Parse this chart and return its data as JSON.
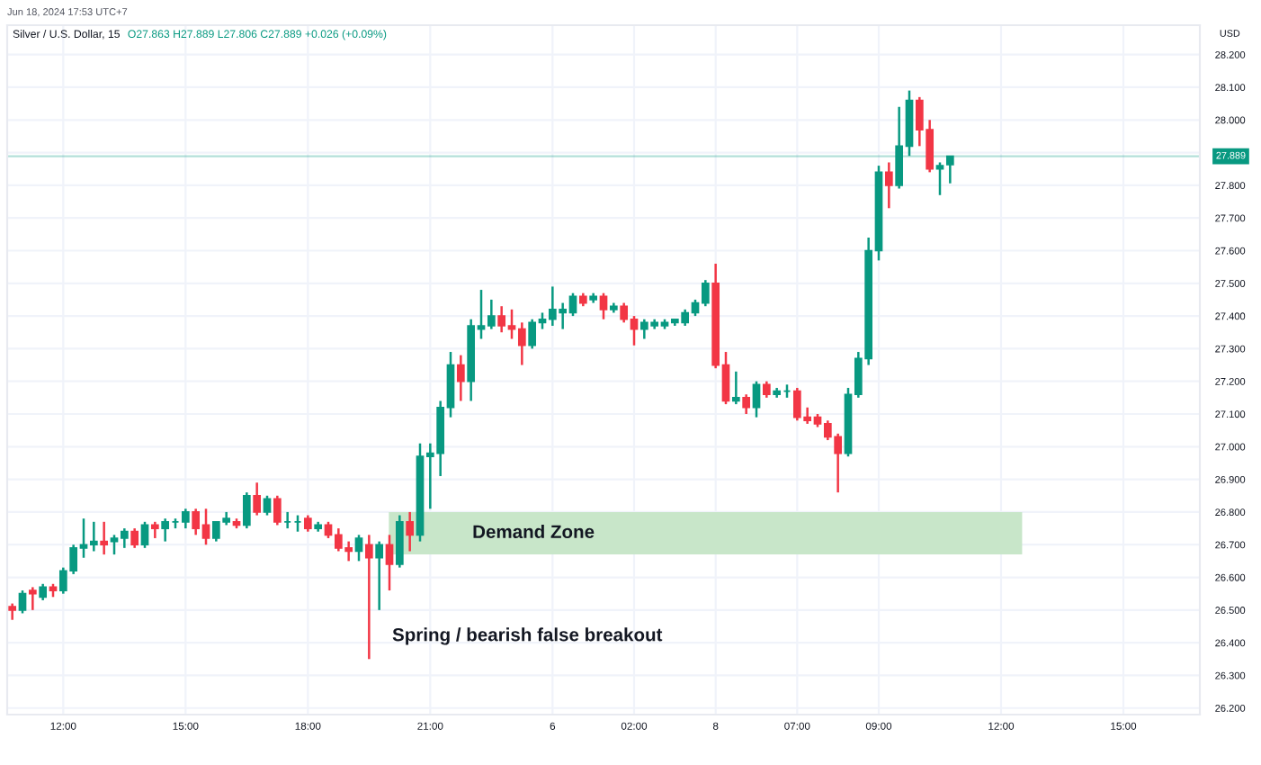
{
  "chart_data": {
    "type": "candlestick",
    "title": "Silver / U.S. Dollar, 15",
    "subtitle": "O27.863 H27.889 L27.806 C27.889 +0.026 (+0.09%)",
    "ylabel": "USD",
    "annotations": [
      "Jun 18, 2024 17:53 UTC+7",
      "Spring / bearish false breakout"
    ],
    "categories": [
      null,
      null,
      null,
      null,
      null,
      "12:00",
      null,
      null,
      null,
      null,
      null,
      null,
      null,
      null,
      null,
      null,
      null,
      "15:00",
      null,
      null,
      null,
      null,
      null,
      null,
      null,
      null,
      null,
      null,
      null,
      "18:00",
      null,
      null,
      null,
      null,
      null,
      null,
      null,
      null,
      null,
      null,
      null,
      "21:00",
      null,
      null,
      null,
      null,
      null,
      null,
      null,
      null,
      null,
      null,
      null,
      "6",
      null,
      null,
      null,
      null,
      null,
      null,
      null,
      "02:00",
      null,
      null,
      null,
      null,
      null,
      null,
      null,
      "8",
      null,
      null,
      null,
      null,
      null,
      null,
      null,
      "07:00",
      null,
      null,
      null,
      null,
      null,
      null,
      null,
      "09:00",
      null,
      null,
      null,
      null,
      null,
      null,
      null,
      null,
      null,
      null,
      null,
      "12:00",
      null,
      null,
      null,
      null,
      null,
      null,
      null,
      null,
      null,
      null,
      null,
      "15:00",
      null,
      null,
      null,
      null,
      null,
      null,
      null
    ],
    "ohlc": [
      [
        26.51,
        26.52,
        26.47,
        26.5
      ],
      [
        26.5,
        26.56,
        26.49,
        26.55
      ],
      [
        26.56,
        26.57,
        26.5,
        26.55
      ],
      [
        26.54,
        26.58,
        26.53,
        26.57
      ],
      [
        26.57,
        26.58,
        26.54,
        26.56
      ],
      [
        26.56,
        26.63,
        26.55,
        26.62
      ],
      [
        26.62,
        26.7,
        26.61,
        26.69
      ],
      [
        26.69,
        26.78,
        26.66,
        26.7
      ],
      [
        26.7,
        26.77,
        26.68,
        26.71
      ],
      [
        26.71,
        26.77,
        26.67,
        26.7
      ],
      [
        26.71,
        26.73,
        26.67,
        26.72
      ],
      [
        26.72,
        26.75,
        26.69,
        26.74
      ],
      [
        26.74,
        26.75,
        26.69,
        26.7
      ],
      [
        26.7,
        26.77,
        26.69,
        26.76
      ],
      [
        26.76,
        26.77,
        26.72,
        26.75
      ],
      [
        26.75,
        26.78,
        26.71,
        26.77
      ],
      [
        26.77,
        26.78,
        26.75,
        26.77
      ],
      [
        26.77,
        26.81,
        26.75,
        26.8
      ],
      [
        26.8,
        26.81,
        26.73,
        26.75
      ],
      [
        26.76,
        26.81,
        26.7,
        26.72
      ],
      [
        26.72,
        26.77,
        26.71,
        26.77
      ],
      [
        26.77,
        26.8,
        26.76,
        26.78
      ],
      [
        26.77,
        26.78,
        26.75,
        26.76
      ],
      [
        26.76,
        26.86,
        26.75,
        26.85
      ],
      [
        26.85,
        26.89,
        26.79,
        26.8
      ],
      [
        26.8,
        26.85,
        26.79,
        26.84
      ],
      [
        26.84,
        26.85,
        26.76,
        26.77
      ],
      [
        26.77,
        26.8,
        26.75,
        26.77
      ],
      [
        26.77,
        26.79,
        26.74,
        26.77
      ],
      [
        26.78,
        26.79,
        26.74,
        26.75
      ],
      [
        26.75,
        26.77,
        26.74,
        26.76
      ],
      [
        26.76,
        26.77,
        26.72,
        26.73
      ],
      [
        26.73,
        26.75,
        26.68,
        26.69
      ],
      [
        26.69,
        26.71,
        26.65,
        26.68
      ],
      [
        26.68,
        26.73,
        26.65,
        26.72
      ],
      [
        26.7,
        26.73,
        26.35,
        26.66
      ],
      [
        26.66,
        26.71,
        26.5,
        26.7
      ],
      [
        26.7,
        26.73,
        26.56,
        26.64
      ],
      [
        26.64,
        26.79,
        26.63,
        26.77
      ],
      [
        26.77,
        26.8,
        26.68,
        26.73
      ],
      [
        26.73,
        27.01,
        26.71,
        26.97
      ],
      [
        26.97,
        27.01,
        26.81,
        26.98
      ],
      [
        26.98,
        27.14,
        26.91,
        27.12
      ],
      [
        27.12,
        27.29,
        27.09,
        27.25
      ],
      [
        27.25,
        27.28,
        27.14,
        27.2
      ],
      [
        27.2,
        27.39,
        27.14,
        27.37
      ],
      [
        27.36,
        27.48,
        27.33,
        27.37
      ],
      [
        27.37,
        27.45,
        27.36,
        27.4
      ],
      [
        27.4,
        27.43,
        27.35,
        27.37
      ],
      [
        27.37,
        27.42,
        27.33,
        27.36
      ],
      [
        27.36,
        27.38,
        27.25,
        27.31
      ],
      [
        27.31,
        27.39,
        27.3,
        27.38
      ],
      [
        27.38,
        27.41,
        27.36,
        27.39
      ],
      [
        27.39,
        27.49,
        27.37,
        27.42
      ],
      [
        27.41,
        27.44,
        27.36,
        27.42
      ],
      [
        27.41,
        27.47,
        27.4,
        27.46
      ],
      [
        27.46,
        27.47,
        27.43,
        27.44
      ],
      [
        27.45,
        27.47,
        27.44,
        27.46
      ],
      [
        27.46,
        27.47,
        27.39,
        27.42
      ],
      [
        27.42,
        27.44,
        27.41,
        27.43
      ],
      [
        27.43,
        27.44,
        27.38,
        27.39
      ],
      [
        27.39,
        27.4,
        27.31,
        27.36
      ],
      [
        27.36,
        27.39,
        27.33,
        27.38
      ],
      [
        27.37,
        27.39,
        27.36,
        27.38
      ],
      [
        27.37,
        27.39,
        27.36,
        27.38
      ],
      [
        27.38,
        27.39,
        27.37,
        27.39
      ],
      [
        27.38,
        27.42,
        27.37,
        27.41
      ],
      [
        27.41,
        27.45,
        27.4,
        27.44
      ],
      [
        27.44,
        27.51,
        27.43,
        27.5
      ],
      [
        27.5,
        27.56,
        27.24,
        27.25
      ],
      [
        27.25,
        27.29,
        27.13,
        27.14
      ],
      [
        27.14,
        27.23,
        27.13,
        27.15
      ],
      [
        27.15,
        27.16,
        27.1,
        27.12
      ],
      [
        27.12,
        27.2,
        27.09,
        27.19
      ],
      [
        27.19,
        27.2,
        27.15,
        27.16
      ],
      [
        27.16,
        27.18,
        27.15,
        27.17
      ],
      [
        27.17,
        27.19,
        27.15,
        27.17
      ],
      [
        27.17,
        27.18,
        27.08,
        27.09
      ],
      [
        27.09,
        27.12,
        27.07,
        27.08
      ],
      [
        27.09,
        27.1,
        27.06,
        27.07
      ],
      [
        27.07,
        27.08,
        27.02,
        27.03
      ],
      [
        27.03,
        27.04,
        26.86,
        26.98
      ],
      [
        26.98,
        27.18,
        26.97,
        27.16
      ],
      [
        27.16,
        27.29,
        27.15,
        27.27
      ],
      [
        27.27,
        27.64,
        27.25,
        27.6
      ],
      [
        27.6,
        27.86,
        27.57,
        27.84
      ],
      [
        27.84,
        27.87,
        27.73,
        27.8
      ],
      [
        27.8,
        28.04,
        27.79,
        27.92
      ],
      [
        27.92,
        28.09,
        27.89,
        28.06
      ],
      [
        28.06,
        28.07,
        27.92,
        27.97
      ],
      [
        27.97,
        28.0,
        27.84,
        27.85
      ],
      [
        27.85,
        27.87,
        27.77,
        27.86
      ],
      [
        27.863,
        27.889,
        27.806,
        27.889
      ],
      null,
      null,
      null,
      null,
      null,
      null,
      null,
      null,
      null,
      null,
      null,
      null,
      null,
      null,
      null,
      null,
      null,
      null,
      null,
      null,
      null,
      null,
      null,
      null
    ],
    "colors": [
      "#f23645",
      "#089981",
      "#f23645",
      "#089981",
      "#f23645",
      "#089981",
      "#089981",
      "#089981",
      "#089981",
      "#f23645",
      "#089981",
      "#089981",
      "#f23645",
      "#089981",
      "#f23645",
      "#089981",
      "#089981",
      "#089981",
      "#f23645",
      "#f23645",
      "#089981",
      "#089981",
      "#f23645",
      "#089981",
      "#f23645",
      "#089981",
      "#f23645",
      "#089981",
      "#089981",
      "#f23645",
      "#089981",
      "#f23645",
      "#f23645",
      "#f23645",
      "#089981",
      "#f23645",
      "#089981",
      "#f23645",
      "#089981",
      "#f23645",
      "#089981",
      "#089981",
      "#089981",
      "#089981",
      "#f23645",
      "#089981",
      "#089981",
      "#089981",
      "#f23645",
      "#f23645",
      "#f23645",
      "#089981",
      "#089981",
      "#089981",
      "#089981",
      "#089981",
      "#f23645",
      "#089981",
      "#f23645",
      "#089981",
      "#f23645",
      "#f23645",
      "#089981",
      "#089981",
      "#089981",
      "#089981",
      "#089981",
      "#089981",
      "#089981",
      "#f23645",
      "#f23645",
      "#089981",
      "#f23645",
      "#089981",
      "#f23645",
      "#089981",
      "#089981",
      "#f23645",
      "#f23645",
      "#f23645",
      "#f23645",
      "#f23645",
      "#089981",
      "#089981",
      "#089981",
      "#089981",
      "#f23645",
      "#089981",
      "#089981",
      "#f23645",
      "#f23645",
      "#089981",
      "#089981",
      null,
      null,
      null,
      null,
      null,
      null,
      null,
      null,
      null,
      null,
      null,
      null,
      null,
      null,
      null,
      null,
      null,
      null,
      null,
      null,
      null,
      null,
      null,
      null
    ],
    "ylim": [
      26.18,
      28.29
    ],
    "yticks": [
      {
        "value": 26.2,
        "label": "26.200"
      },
      {
        "value": 26.3,
        "label": "26.300"
      },
      {
        "value": 26.4,
        "label": "26.400"
      },
      {
        "value": 26.5,
        "label": "26.500"
      },
      {
        "value": 26.6,
        "label": "26.600"
      },
      {
        "value": 26.7,
        "label": "26.700"
      },
      {
        "value": 26.8,
        "label": "26.800"
      },
      {
        "value": 26.9,
        "label": "26.900"
      },
      {
        "value": 27.0,
        "label": "27.000"
      },
      {
        "value": 27.1,
        "label": "27.100"
      },
      {
        "value": 27.2,
        "label": "27.200"
      },
      {
        "value": 27.3,
        "label": "27.300"
      },
      {
        "value": 27.4,
        "label": "27.400"
      },
      {
        "value": 27.5,
        "label": "27.500"
      },
      {
        "value": 27.6,
        "label": "27.600"
      },
      {
        "value": 27.7,
        "label": "27.700"
      },
      {
        "value": 27.8,
        "label": "27.800"
      },
      {
        "value": 27.9,
        "label": null
      },
      {
        "value": 28.0,
        "label": "28.000"
      },
      {
        "value": 28.1,
        "label": "28.100"
      },
      {
        "value": 28.2,
        "label": "28.200"
      }
    ],
    "ref_lines": [
      {
        "axis": "y",
        "value": 27.889,
        "label": "27.889",
        "color": "#089981"
      }
    ],
    "bands": [
      {
        "axis": "y",
        "from": 26.67,
        "to": 26.8,
        "label": "Demand Zone",
        "color": "#c8e6c9"
      }
    ],
    "grid": true
  }
}
